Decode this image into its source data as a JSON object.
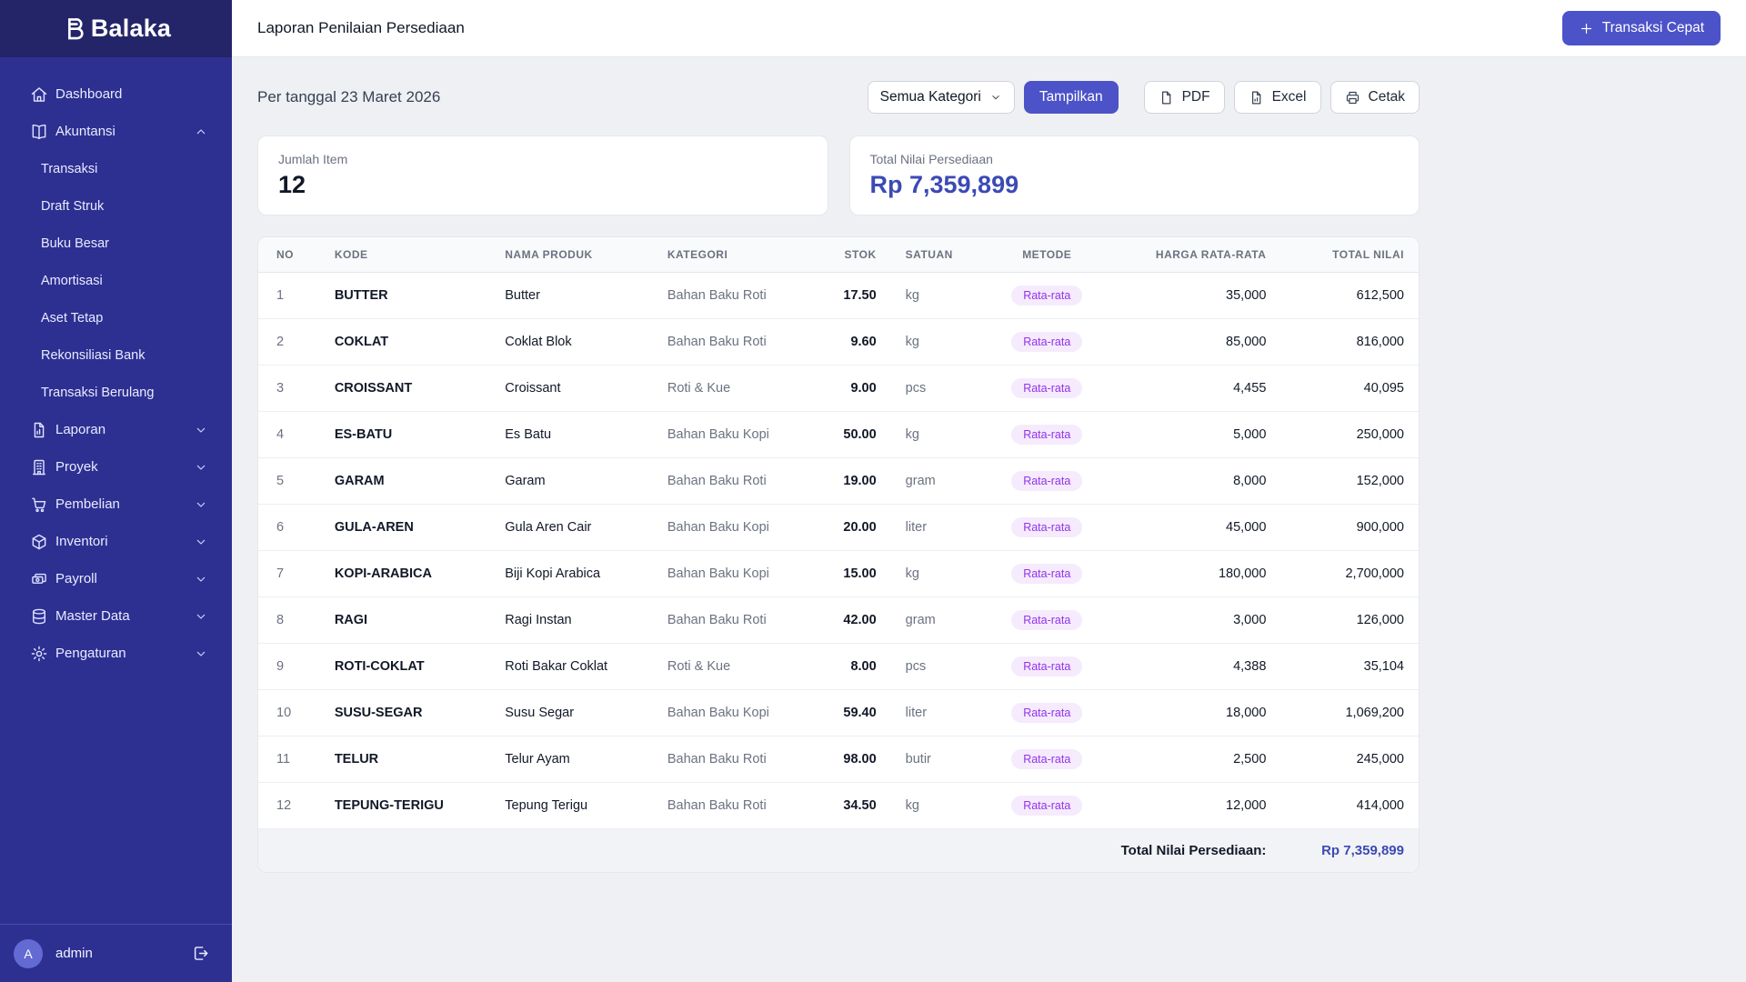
{
  "colors": {
    "sidebar_bg": "#2d3091",
    "sidebar_logo_bg": "#242568",
    "accent": "#4c52c7",
    "total_value": "#3b4ab4",
    "badge_bg": "#f5ebfd",
    "badge_text": "#9333ea",
    "page_bg": "#eef0f4"
  },
  "brand": {
    "name": "Balaka",
    "icon": "balaka-b"
  },
  "sidebar": {
    "items": [
      {
        "id": "dashboard",
        "label": "Dashboard",
        "icon": "home",
        "expandable": false
      },
      {
        "id": "akuntansi",
        "label": "Akuntansi",
        "icon": "book",
        "expandable": true,
        "expanded": true,
        "children": [
          {
            "id": "transaksi",
            "label": "Transaksi"
          },
          {
            "id": "draft-struk",
            "label": "Draft Struk"
          },
          {
            "id": "buku-besar",
            "label": "Buku Besar"
          },
          {
            "id": "amortisasi",
            "label": "Amortisasi"
          },
          {
            "id": "aset-tetap",
            "label": "Aset Tetap"
          },
          {
            "id": "rekonsiliasi-bank",
            "label": "Rekonsiliasi Bank"
          },
          {
            "id": "transaksi-berulang",
            "label": "Transaksi Berulang"
          }
        ]
      },
      {
        "id": "laporan",
        "label": "Laporan",
        "icon": "report",
        "expandable": true,
        "expanded": false
      },
      {
        "id": "proyek",
        "label": "Proyek",
        "icon": "building",
        "expandable": true,
        "expanded": false
      },
      {
        "id": "pembelian",
        "label": "Pembelian",
        "icon": "cart",
        "expandable": true,
        "expanded": false
      },
      {
        "id": "inventori",
        "label": "Inventori",
        "icon": "cube",
        "expandable": true,
        "expanded": false
      },
      {
        "id": "payroll",
        "label": "Payroll",
        "icon": "cash",
        "expandable": true,
        "expanded": false
      },
      {
        "id": "master-data",
        "label": "Master Data",
        "icon": "database",
        "expandable": true,
        "expanded": false
      },
      {
        "id": "pengaturan",
        "label": "Pengaturan",
        "icon": "gear",
        "expandable": true,
        "expanded": false
      }
    ],
    "user": {
      "name": "admin",
      "avatar_initial": "A",
      "logout_icon": "logout"
    }
  },
  "header": {
    "title": "Laporan Penilaian Persediaan",
    "quick_action": {
      "label": "Transaksi Cepat",
      "icon": "plus"
    }
  },
  "filters": {
    "date_label": "Per tanggal 23 Maret 2026",
    "category_select": {
      "value": "Semua Kategori",
      "icon": "chevron-down"
    },
    "show_button": {
      "label": "Tampilkan"
    },
    "export_buttons": [
      {
        "id": "pdf",
        "label": "PDF",
        "icon": "file"
      },
      {
        "id": "excel",
        "label": "Excel",
        "icon": "file-chart"
      },
      {
        "id": "cetak",
        "label": "Cetak",
        "icon": "printer"
      }
    ]
  },
  "summary_cards": [
    {
      "label": "Jumlah Item",
      "value": "12",
      "highlight": false
    },
    {
      "label": "Total Nilai Persediaan",
      "value": "Rp 7,359,899",
      "highlight": true
    }
  ],
  "table": {
    "headers": [
      {
        "label": "NO",
        "align": "left"
      },
      {
        "label": "KODE",
        "align": "left"
      },
      {
        "label": "NAMA PRODUK",
        "align": "left"
      },
      {
        "label": "KATEGORI",
        "align": "left"
      },
      {
        "label": "STOK",
        "align": "right"
      },
      {
        "label": "SATUAN",
        "align": "left"
      },
      {
        "label": "METODE",
        "align": "center"
      },
      {
        "label": "HARGA RATA-RATA",
        "align": "right"
      },
      {
        "label": "TOTAL NILAI",
        "align": "right"
      }
    ],
    "rows": [
      {
        "no": "1",
        "kode": "BUTTER",
        "nama": "Butter",
        "kategori": "Bahan Baku Roti",
        "stok": "17.50",
        "satuan": "kg",
        "metode": "Rata-rata",
        "harga": "35,000",
        "total": "612,500"
      },
      {
        "no": "2",
        "kode": "COKLAT",
        "nama": "Coklat Blok",
        "kategori": "Bahan Baku Roti",
        "stok": "9.60",
        "satuan": "kg",
        "metode": "Rata-rata",
        "harga": "85,000",
        "total": "816,000"
      },
      {
        "no": "3",
        "kode": "CROISSANT",
        "nama": "Croissant",
        "kategori": "Roti & Kue",
        "stok": "9.00",
        "satuan": "pcs",
        "metode": "Rata-rata",
        "harga": "4,455",
        "total": "40,095"
      },
      {
        "no": "4",
        "kode": "ES-BATU",
        "nama": "Es Batu",
        "kategori": "Bahan Baku Kopi",
        "stok": "50.00",
        "satuan": "kg",
        "metode": "Rata-rata",
        "harga": "5,000",
        "total": "250,000"
      },
      {
        "no": "5",
        "kode": "GARAM",
        "nama": "Garam",
        "kategori": "Bahan Baku Roti",
        "stok": "19.00",
        "satuan": "gram",
        "metode": "Rata-rata",
        "harga": "8,000",
        "total": "152,000"
      },
      {
        "no": "6",
        "kode": "GULA-AREN",
        "nama": "Gula Aren Cair",
        "kategori": "Bahan Baku Kopi",
        "stok": "20.00",
        "satuan": "liter",
        "metode": "Rata-rata",
        "harga": "45,000",
        "total": "900,000"
      },
      {
        "no": "7",
        "kode": "KOPI-ARABICA",
        "nama": "Biji Kopi Arabica",
        "kategori": "Bahan Baku Kopi",
        "stok": "15.00",
        "satuan": "kg",
        "metode": "Rata-rata",
        "harga": "180,000",
        "total": "2,700,000"
      },
      {
        "no": "8",
        "kode": "RAGI",
        "nama": "Ragi Instan",
        "kategori": "Bahan Baku Roti",
        "stok": "42.00",
        "satuan": "gram",
        "metode": "Rata-rata",
        "harga": "3,000",
        "total": "126,000"
      },
      {
        "no": "9",
        "kode": "ROTI-COKLAT",
        "nama": "Roti Bakar Coklat",
        "kategori": "Roti & Kue",
        "stok": "8.00",
        "satuan": "pcs",
        "metode": "Rata-rata",
        "harga": "4,388",
        "total": "35,104"
      },
      {
        "no": "10",
        "kode": "SUSU-SEGAR",
        "nama": "Susu Segar",
        "kategori": "Bahan Baku Kopi",
        "stok": "59.40",
        "satuan": "liter",
        "metode": "Rata-rata",
        "harga": "18,000",
        "total": "1,069,200"
      },
      {
        "no": "11",
        "kode": "TELUR",
        "nama": "Telur Ayam",
        "kategori": "Bahan Baku Roti",
        "stok": "98.00",
        "satuan": "butir",
        "metode": "Rata-rata",
        "harga": "2,500",
        "total": "245,000"
      },
      {
        "no": "12",
        "kode": "TEPUNG-TERIGU",
        "nama": "Tepung Terigu",
        "kategori": "Bahan Baku Roti",
        "stok": "34.50",
        "satuan": "kg",
        "metode": "Rata-rata",
        "harga": "12,000",
        "total": "414,000"
      }
    ],
    "footer": {
      "label": "Total Nilai Persediaan:",
      "value": "Rp 7,359,899"
    }
  }
}
